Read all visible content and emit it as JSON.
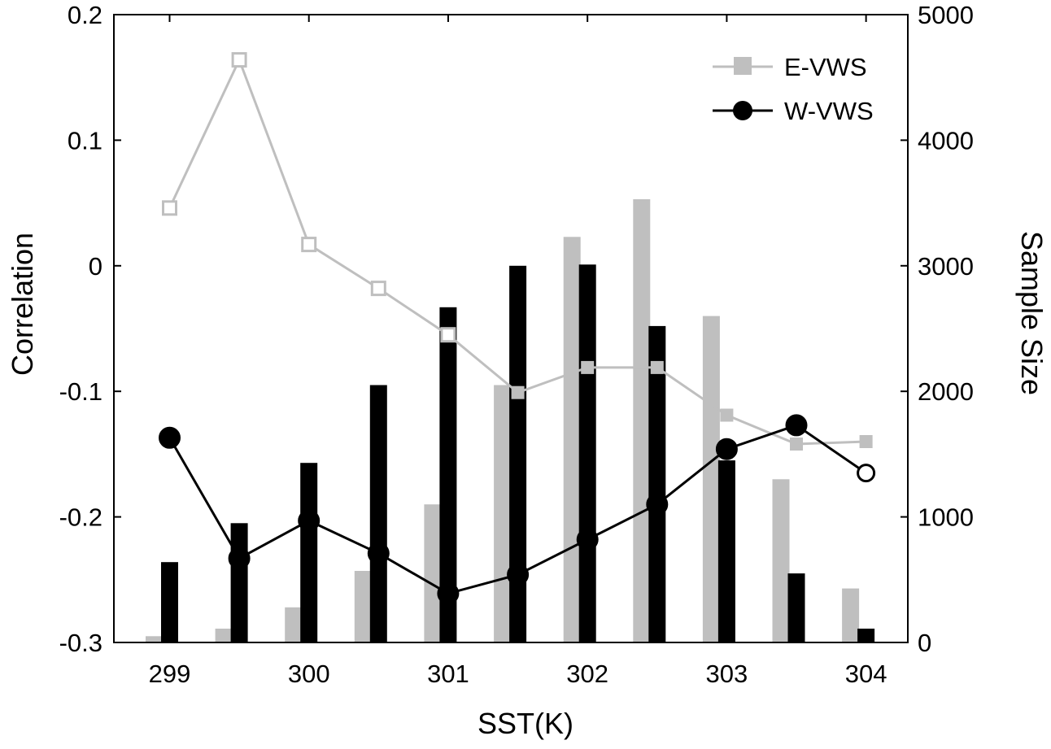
{
  "chart_data": {
    "type": "bar",
    "xlabel": "SST(K)",
    "ylabel": "Correlation",
    "ylabel_right": "Sample Size",
    "x_ticks": [
      299,
      300,
      301,
      302,
      303,
      304
    ],
    "xlim": [
      298.6,
      304.3
    ],
    "ylim": [
      -0.3,
      0.2
    ],
    "y_ticks": [
      -0.3,
      -0.2,
      -0.1,
      0,
      0.1,
      0.2
    ],
    "y_tick_labels": [
      "-0.3",
      "-0.2",
      "-0.1",
      "0",
      "0.1",
      "0.2"
    ],
    "ylim_right": [
      0,
      5000
    ],
    "y_ticks_right": [
      0,
      1000,
      2000,
      3000,
      4000,
      5000
    ],
    "grid": false,
    "legend_position": "top-right",
    "bar_series": [
      {
        "color": "#bfbfbf",
        "axis": "right",
        "x": [
          299,
          299.5,
          300,
          300.5,
          301,
          301.5,
          302,
          302.5,
          303,
          303.5,
          304
        ],
        "values": [
          50,
          110,
          280,
          570,
          1100,
          2050,
          3230,
          3530,
          2600,
          1300,
          430
        ]
      },
      {
        "color": "#000000",
        "axis": "right",
        "x": [
          299,
          299.5,
          300,
          300.5,
          301,
          301.5,
          302,
          302.5,
          303,
          303.5,
          304
        ],
        "values": [
          640,
          950,
          1430,
          2050,
          2670,
          3000,
          3010,
          2520,
          1450,
          550,
          110
        ]
      }
    ],
    "series": [
      {
        "name": "E-VWS",
        "color": "#bfbfbf",
        "marker": "square",
        "axis": "left",
        "x": [
          299,
          299.5,
          300,
          300.5,
          301,
          301.5,
          302,
          302.5,
          303,
          303.5,
          304
        ],
        "values": [
          0.046,
          0.164,
          0.017,
          -0.018,
          -0.055,
          -0.101,
          -0.081,
          -0.081,
          -0.119,
          -0.142,
          -0.14
        ],
        "hollow": [
          true,
          true,
          true,
          true,
          true,
          false,
          false,
          false,
          false,
          false,
          false
        ]
      },
      {
        "name": "W-VWS",
        "color": "#000000",
        "marker": "circle",
        "axis": "left",
        "x": [
          299,
          299.5,
          300,
          300.5,
          301,
          301.5,
          302,
          302.5,
          303,
          303.5,
          304
        ],
        "values": [
          -0.137,
          -0.233,
          -0.203,
          -0.229,
          -0.261,
          -0.246,
          -0.218,
          -0.19,
          -0.146,
          -0.127,
          -0.165
        ],
        "hollow": [
          false,
          false,
          false,
          false,
          false,
          false,
          false,
          false,
          false,
          false,
          true
        ]
      }
    ]
  }
}
